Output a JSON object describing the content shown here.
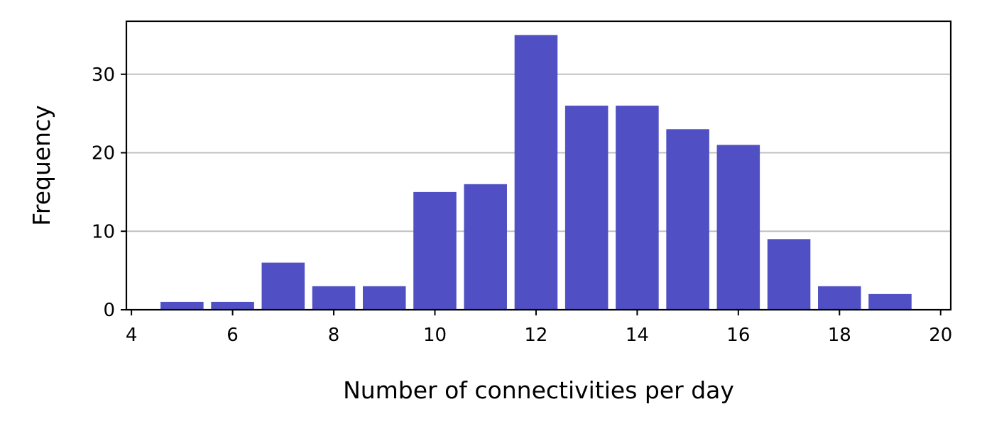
{
  "chart_data": {
    "type": "bar",
    "title": "",
    "xlabel": "Number of connectivities per day",
    "ylabel": "Frequency",
    "x": [
      5,
      6,
      7,
      8,
      9,
      10,
      11,
      12,
      13,
      14,
      15,
      16,
      17,
      18,
      19
    ],
    "values": [
      1,
      1,
      6,
      3,
      3,
      15,
      16,
      35,
      26,
      26,
      23,
      21,
      9,
      3,
      2
    ],
    "xlim": [
      3.9,
      20.2
    ],
    "ylim": [
      0,
      36.75
    ],
    "x_ticks": [
      4,
      6,
      8,
      10,
      12,
      14,
      16,
      18,
      20
    ],
    "x_tick_labels": [
      "4",
      "6",
      "8",
      "10",
      "12",
      "14",
      "16",
      "18",
      "20"
    ],
    "y_ticks": [
      0,
      10,
      20,
      30
    ],
    "y_tick_labels": [
      "0",
      "10",
      "20",
      "30"
    ],
    "bar_width": 0.85,
    "grid": "y-only",
    "legend": "none",
    "colors": {
      "bar": "#5050c4",
      "grid": "#c0c0c0",
      "axis": "#000000"
    }
  }
}
